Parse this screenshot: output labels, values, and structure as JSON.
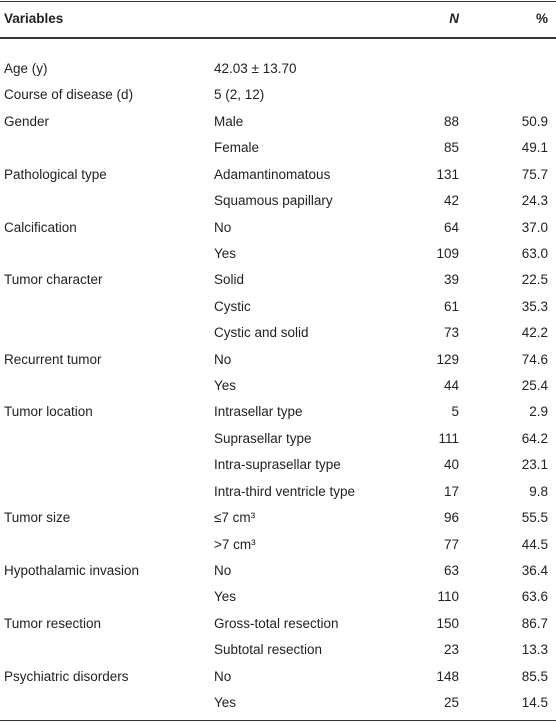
{
  "table": {
    "header": [
      "Variables",
      null,
      "N",
      "%"
    ],
    "rows": [
      [
        "Age (y)",
        "42.03 ± 13.70",
        null,
        null
      ],
      [
        "Course of disease (d)",
        "5 (2, 12)",
        null,
        null
      ],
      [
        "Gender",
        "Male",
        88,
        "50.9"
      ],
      [
        null,
        "Female",
        85,
        "49.1"
      ],
      [
        "Pathological type",
        "Adamantinomatous",
        131,
        "75.7"
      ],
      [
        null,
        "Squamous papillary",
        42,
        "24.3"
      ],
      [
        "Calcification",
        "No",
        64,
        "37.0"
      ],
      [
        null,
        "Yes",
        109,
        "63.0"
      ],
      [
        "Tumor character",
        "Solid",
        39,
        "22.5"
      ],
      [
        null,
        "Cystic",
        61,
        "35.3"
      ],
      [
        null,
        "Cystic and solid",
        73,
        "42.2"
      ],
      [
        "Recurrent tumor",
        "No",
        129,
        "74.6"
      ],
      [
        null,
        "Yes",
        44,
        "25.4"
      ],
      [
        "Tumor location",
        "Intrasellar type",
        5,
        "2.9"
      ],
      [
        null,
        "Suprasellar type",
        111,
        "64.2"
      ],
      [
        null,
        "Intra-suprasellar type",
        40,
        "23.1"
      ],
      [
        null,
        "Intra-third ventricle type",
        17,
        "9.8"
      ],
      [
        "Tumor size",
        "≤7 cm³",
        96,
        "55.5"
      ],
      [
        null,
        ">7 cm³",
        77,
        "44.5"
      ],
      [
        "Hypothalamic invasion",
        "No",
        63,
        "36.4"
      ],
      [
        null,
        "Yes",
        110,
        "63.6"
      ],
      [
        "Tumor resection",
        "Gross-total resection",
        150,
        "86.7"
      ],
      [
        null,
        "Subtotal resection",
        23,
        "13.3"
      ],
      [
        "Psychiatric disorders",
        "No",
        148,
        "85.5"
      ],
      [
        null,
        "Yes",
        25,
        "14.5"
      ]
    ]
  }
}
